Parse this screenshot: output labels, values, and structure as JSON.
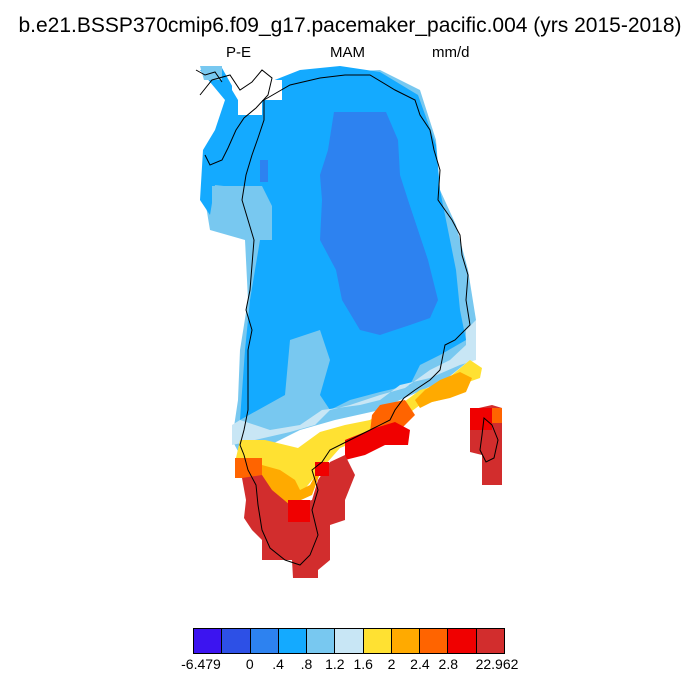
{
  "title": "b.e21.BSSP370cmip6.f09_g17.pacemaker_pacific.004 (yrs 2015-2018)",
  "subtitle_left": "P-E",
  "subtitle_center": "MAM",
  "subtitle_right": "mm/d",
  "colorbar": {
    "colors": [
      "#3c14f0",
      "#2d50e6",
      "#2d82f0",
      "#14aaff",
      "#78c8f0",
      "#c8e6f5",
      "#ffe132",
      "#ffaa00",
      "#ff6400",
      "#f00000",
      "#d22d2d"
    ],
    "labels": [
      "-6.479",
      "0",
      ".4",
      ".8",
      "1.2",
      "1.6",
      "2",
      "2.4",
      "2.8",
      "22.962"
    ]
  }
}
